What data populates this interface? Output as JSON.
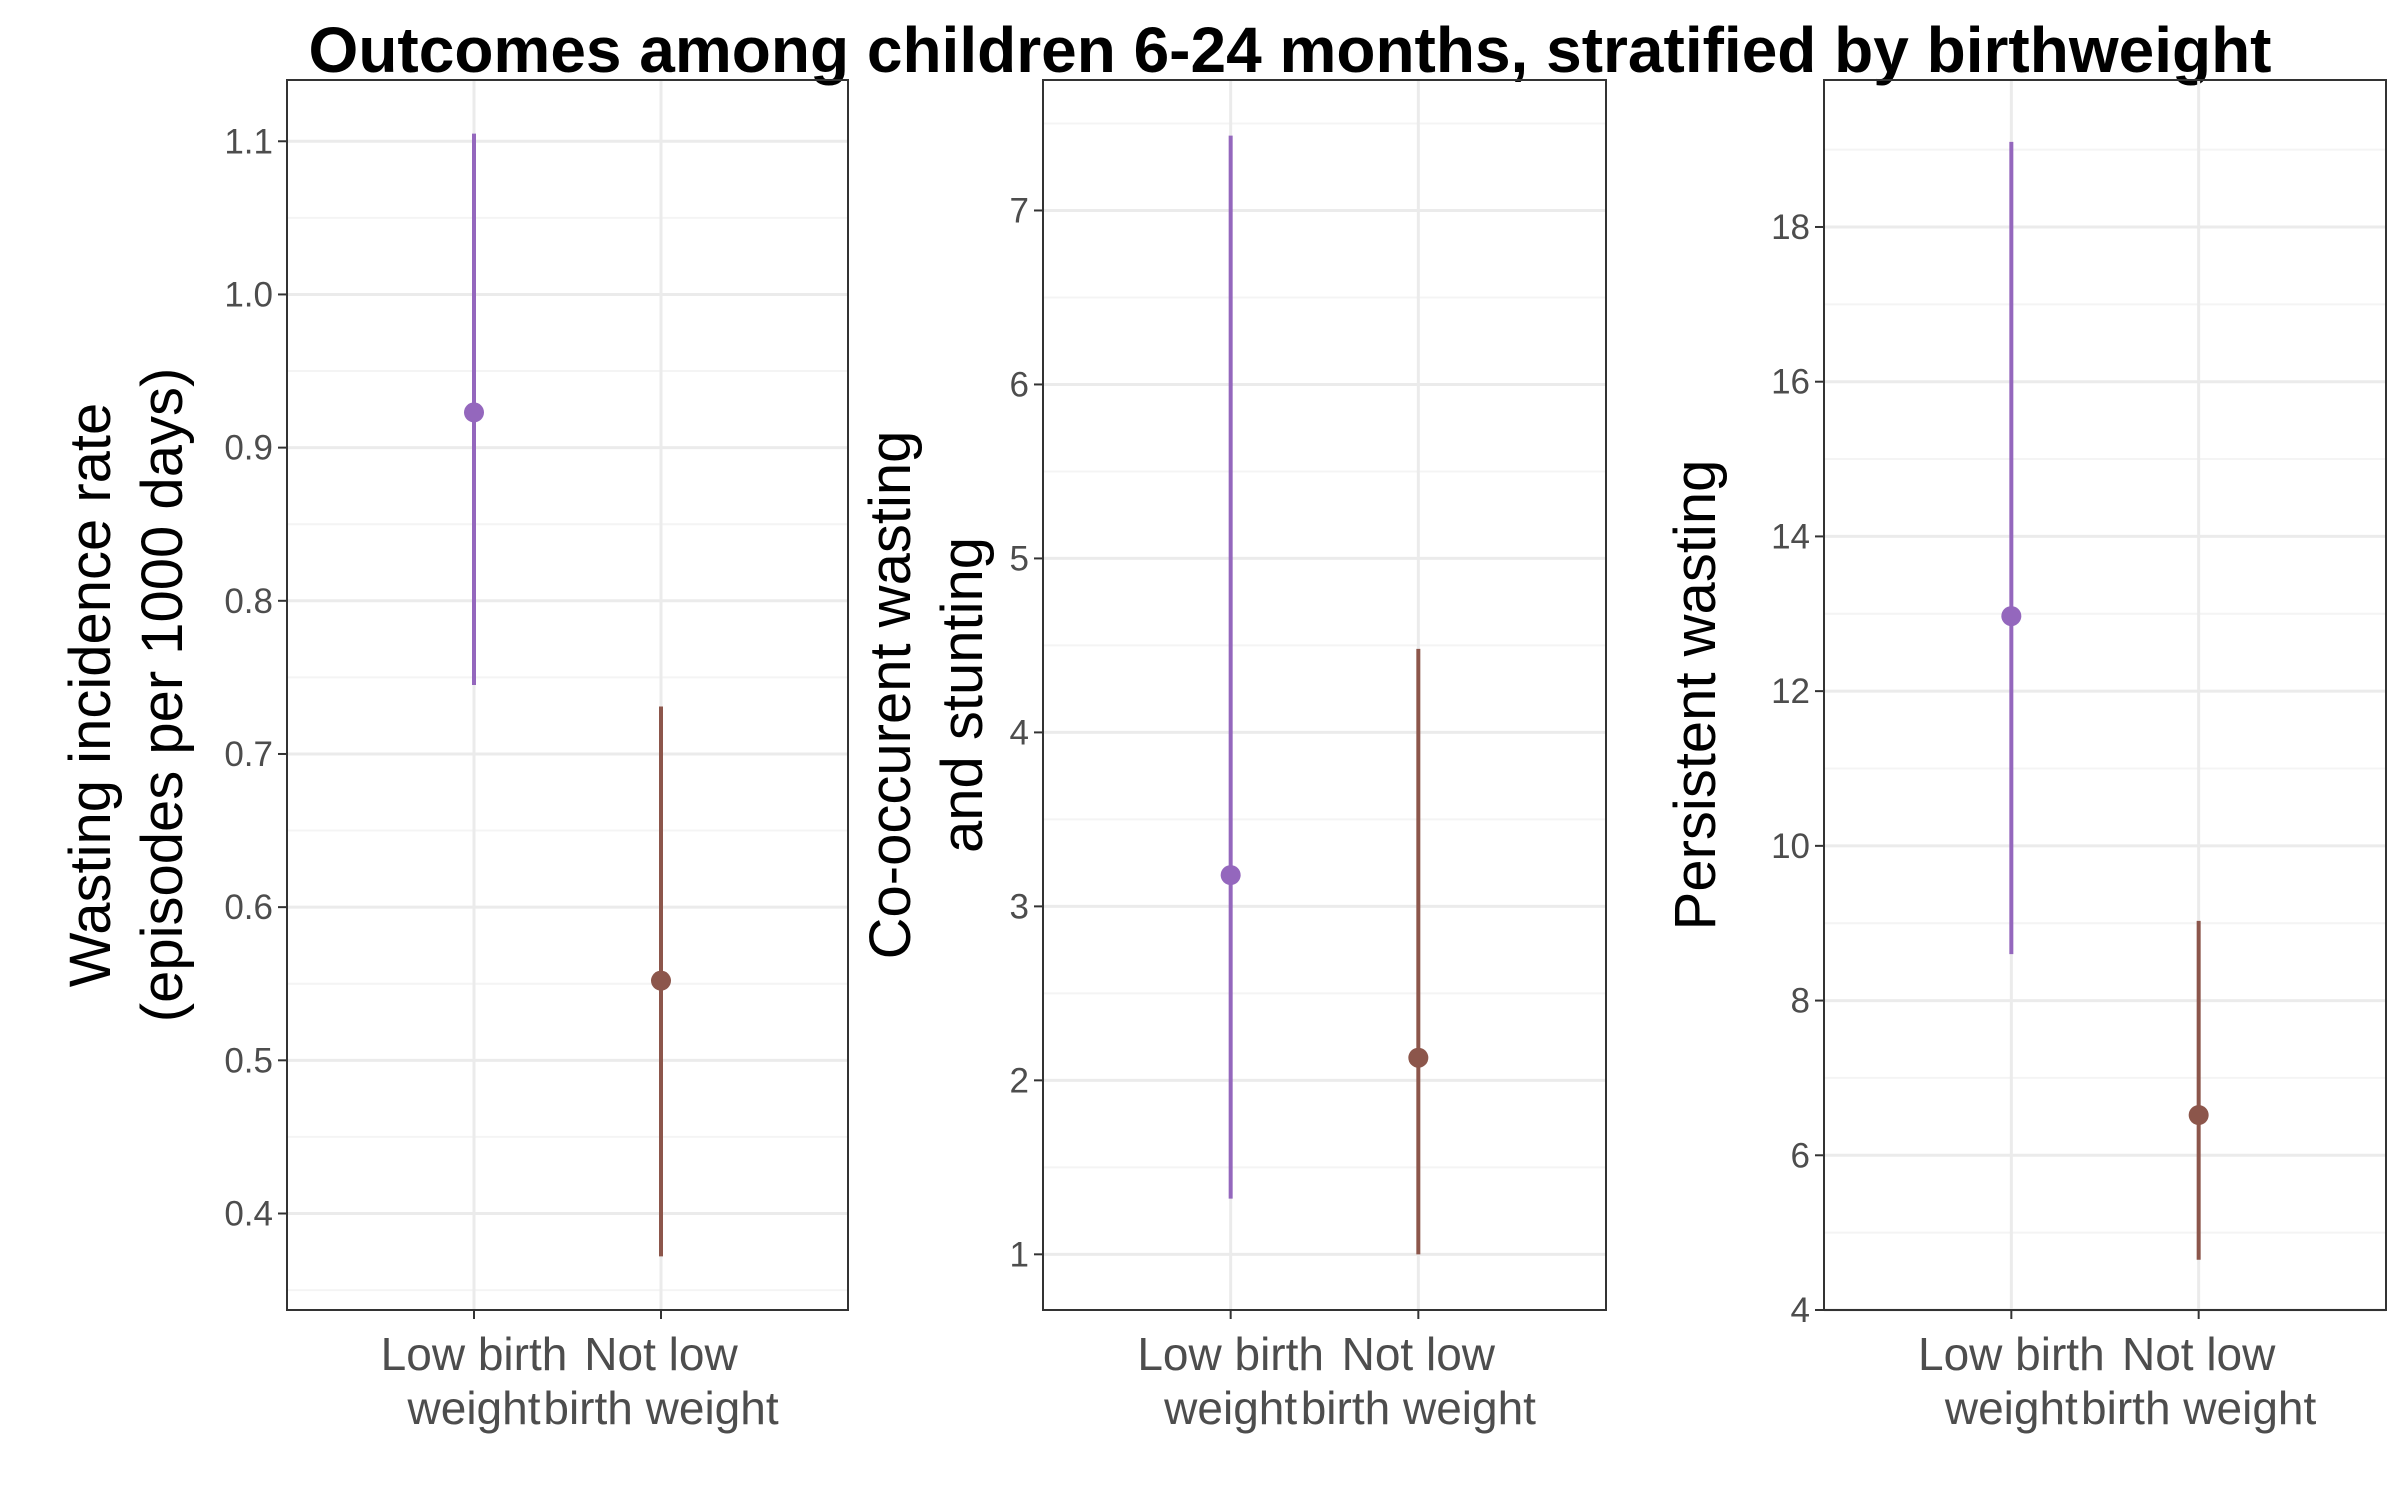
{
  "colors": {
    "low_birth_weight": "#9467bd",
    "not_low_birth_weight": "#8c564b"
  },
  "chart_data": {
    "title": "Outcomes among children 6-24 months, stratified by birthweight",
    "panels": [
      {
        "type": "pointrange",
        "ylabel": [
          "Wasting incidence rate",
          "(episodes per 1000 days)"
        ],
        "categories": [
          "Low birth weight",
          "Not low birth weight"
        ],
        "xtick_lines": [
          [
            "Low birth",
            "weight"
          ],
          [
            "Not low",
            "birth weight"
          ]
        ],
        "ylim": [
          0.337,
          1.14
        ],
        "yticks": [
          0.4,
          0.5,
          0.6,
          0.7,
          0.8,
          0.9,
          1.0,
          1.1
        ],
        "yticklabels": [
          "0.4",
          "0.5",
          "0.6",
          "0.7",
          "0.8",
          "0.9",
          "1.0",
          "1.1"
        ],
        "series": [
          {
            "category": "Low birth weight",
            "estimate": 0.923,
            "lower": 0.745,
            "upper": 1.105
          },
          {
            "category": "Not low birth weight",
            "estimate": 0.552,
            "lower": 0.372,
            "upper": 0.731
          }
        ]
      },
      {
        "type": "pointrange",
        "ylabel": [
          "Co-occurent wasting",
          "and stunting"
        ],
        "categories": [
          "Low birth weight",
          "Not low birth weight"
        ],
        "xtick_lines": [
          [
            "Low birth",
            "weight"
          ],
          [
            "Not low",
            "birth weight"
          ]
        ],
        "ylim": [
          0.68,
          7.75
        ],
        "yticks": [
          1,
          2,
          3,
          4,
          5,
          6,
          7
        ],
        "yticklabels": [
          "1",
          "2",
          "3",
          "4",
          "5",
          "6",
          "7"
        ],
        "series": [
          {
            "category": "Low birth weight",
            "estimate": 3.18,
            "lower": 1.32,
            "upper": 7.43
          },
          {
            "category": "Not low birth weight",
            "estimate": 2.13,
            "lower": 1.0,
            "upper": 4.48
          }
        ]
      },
      {
        "type": "pointrange",
        "ylabel": [
          "Persistent wasting"
        ],
        "categories": [
          "Low birth weight",
          "Not low birth weight"
        ],
        "xtick_lines": [
          [
            "Low birth",
            "weight"
          ],
          [
            "Not low",
            "birth weight"
          ]
        ],
        "ylim": [
          4.0,
          19.9
        ],
        "yticks": [
          4,
          6,
          8,
          10,
          12,
          14,
          16,
          18
        ],
        "yticklabels": [
          "4",
          "6",
          "8",
          "10",
          "12",
          "14",
          "16",
          "18"
        ],
        "series": [
          {
            "category": "Low birth weight",
            "estimate": 12.97,
            "lower": 8.6,
            "upper": 19.1
          },
          {
            "category": "Not low birth weight",
            "estimate": 6.52,
            "lower": 4.65,
            "upper": 9.03
          }
        ]
      }
    ]
  }
}
